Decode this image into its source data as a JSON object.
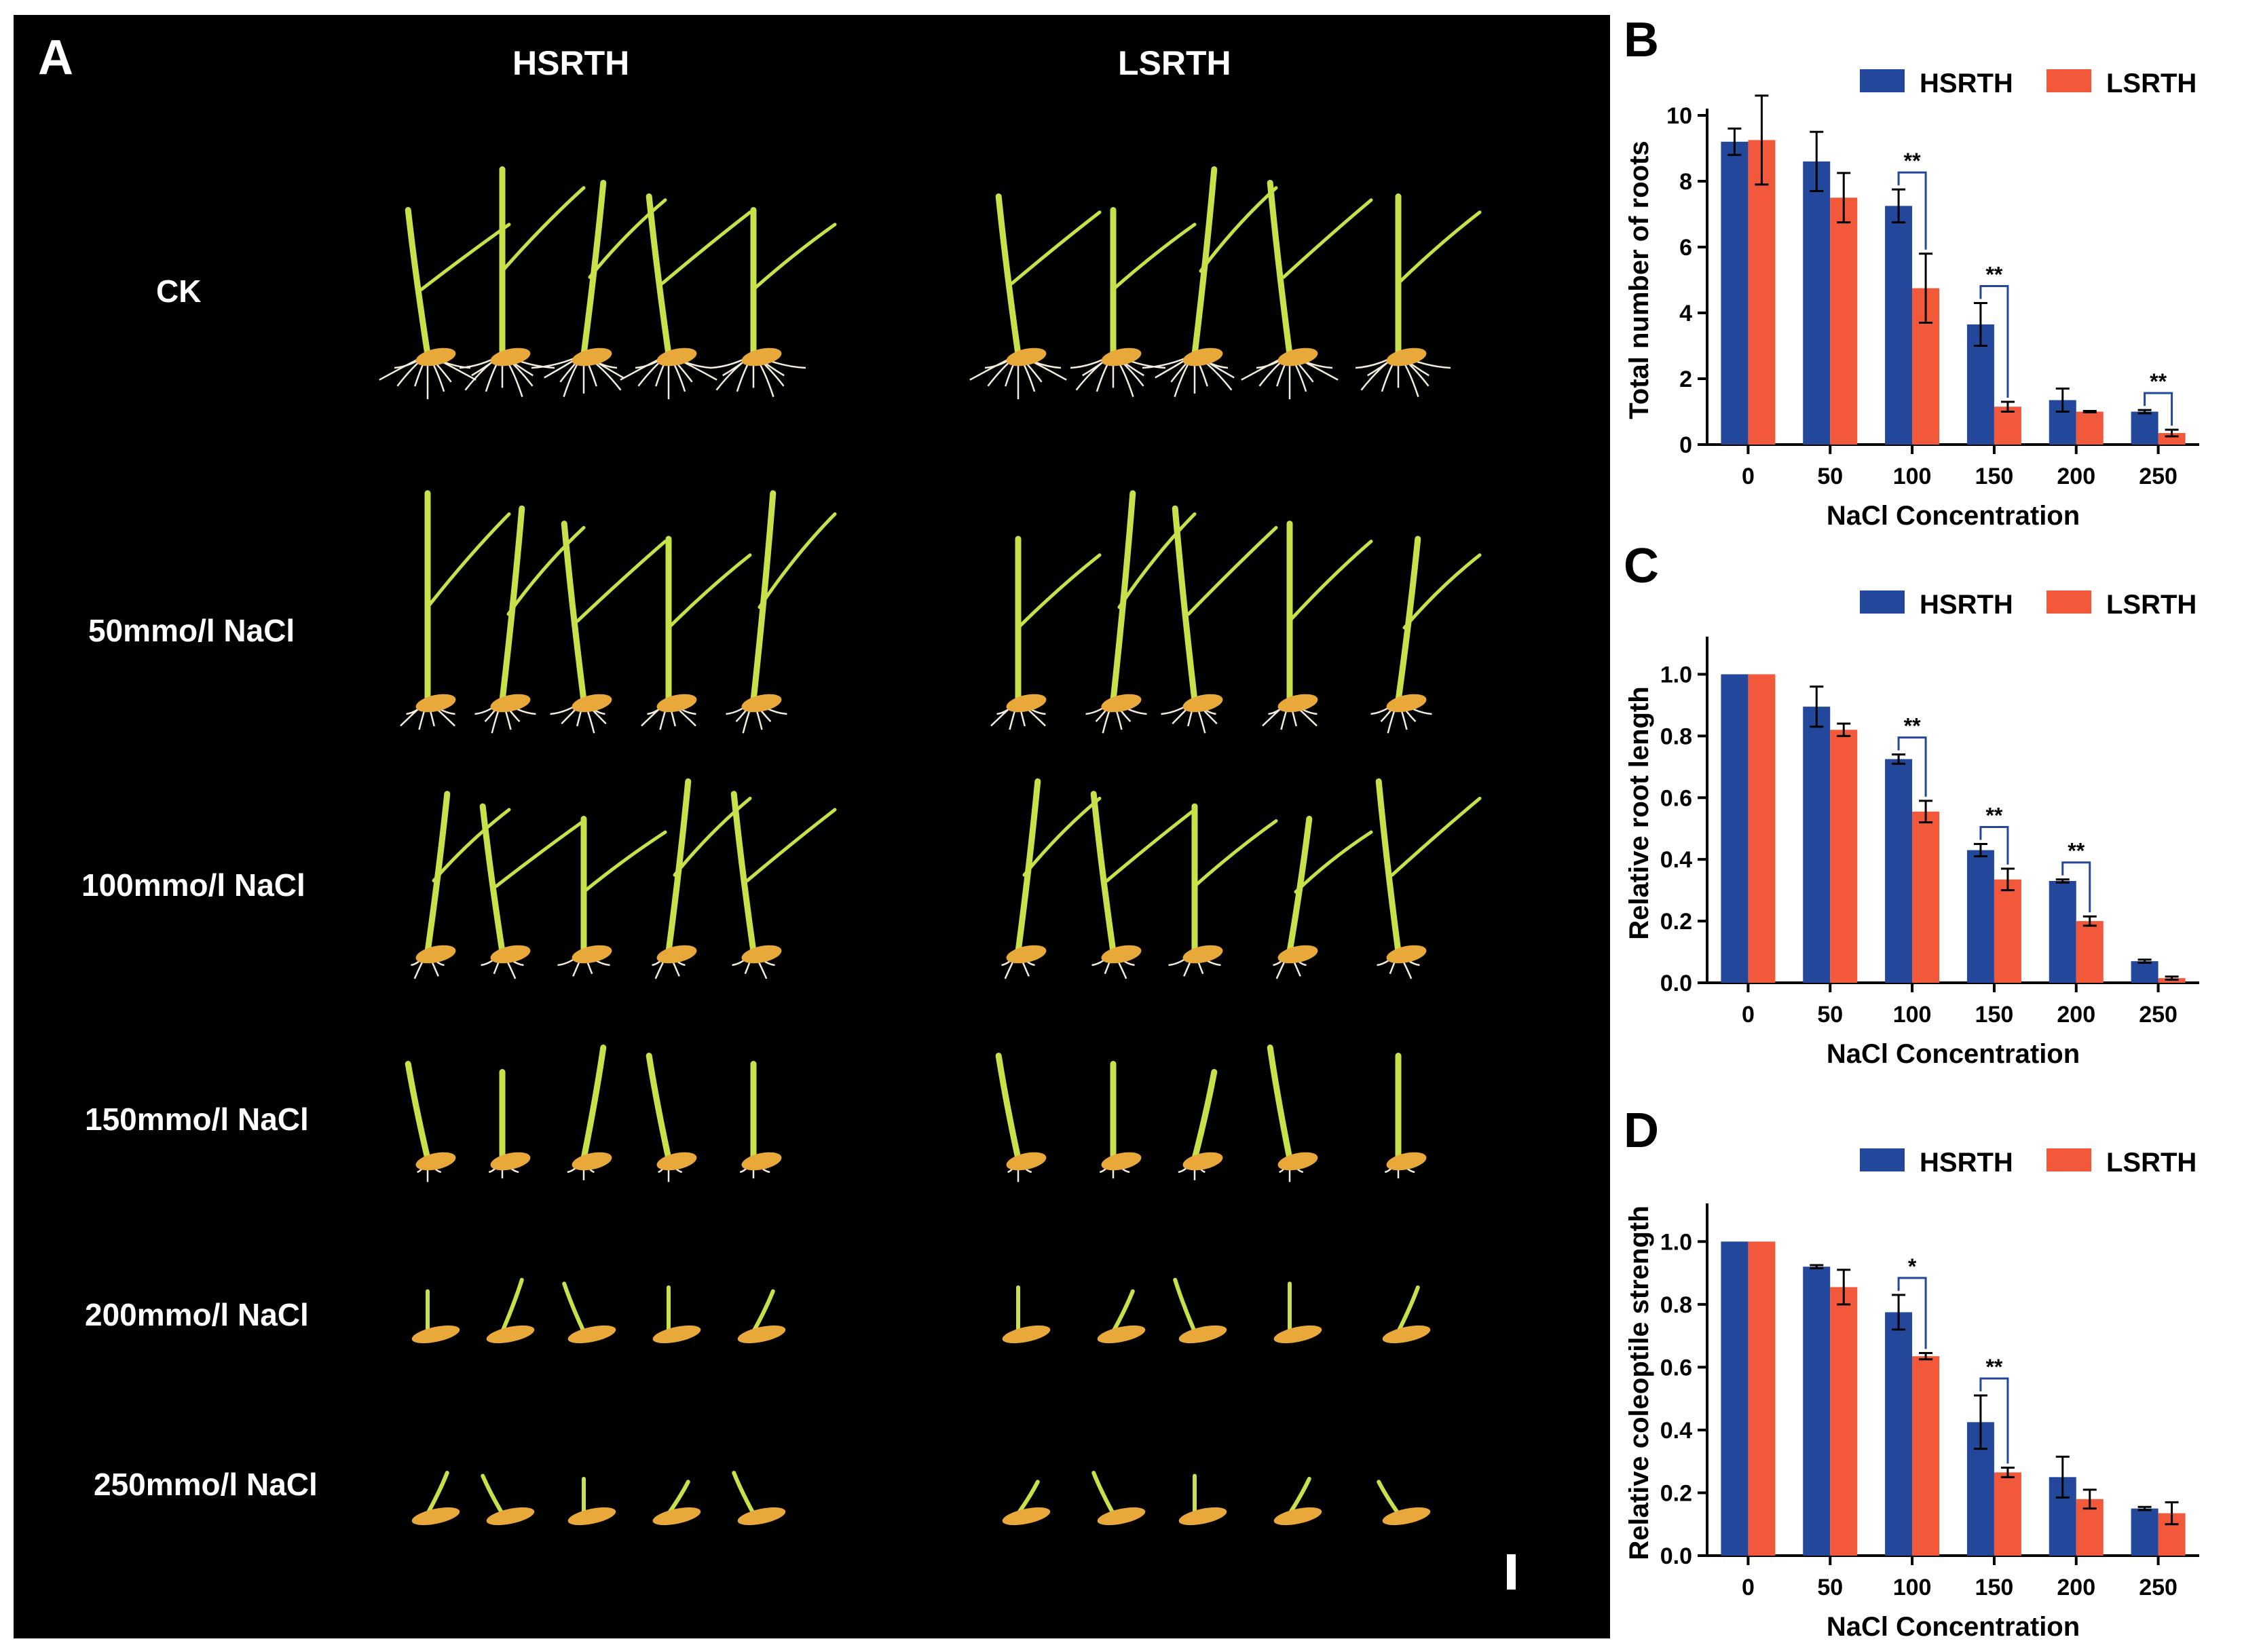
{
  "panel_a": {
    "letter": "A",
    "columns": [
      "HSRTH",
      "LSRTH"
    ],
    "rows": [
      "CK",
      "50mmo/l NaCl",
      "100mmo/l NaCl",
      "150mmo/l NaCl",
      "200mmo/l NaCl",
      "250mmo/l NaCl"
    ],
    "colors": {
      "background": "#000000",
      "leaf": "#c9e04a",
      "seed": "#e8a93a",
      "root": "#f2eddc"
    }
  },
  "colors": {
    "HSRTH": "#23479a",
    "LSRTH": "#f2583a",
    "axis": "#000000"
  },
  "chart_data": [
    {
      "panel": "B",
      "type": "bar",
      "legend": [
        "HSRTH",
        "LSRTH"
      ],
      "categories": [
        "0",
        "50",
        "100",
        "150",
        "200",
        "250"
      ],
      "series": [
        {
          "name": "HSRTH",
          "values": [
            9.2,
            8.6,
            7.25,
            3.65,
            1.35,
            1.0
          ],
          "errors": [
            0.4,
            0.9,
            0.5,
            0.65,
            0.35,
            0.05
          ]
        },
        {
          "name": "LSRTH",
          "values": [
            9.25,
            7.5,
            4.75,
            1.15,
            1.0,
            0.35
          ],
          "errors": [
            1.35,
            0.75,
            1.05,
            0.15,
            0.02,
            0.1
          ]
        }
      ],
      "xlabel": "NaCl Concentration",
      "ylabel": "Total number of roots",
      "ylim": [
        0,
        10
      ],
      "yticks": [
        "0",
        "2",
        "4",
        "6",
        "8",
        "10"
      ],
      "significance": [
        {
          "category": "100",
          "mark": "**"
        },
        {
          "category": "150",
          "mark": "**"
        },
        {
          "category": "250",
          "mark": "**"
        }
      ]
    },
    {
      "panel": "C",
      "type": "bar",
      "legend": [
        "HSRTH",
        "LSRTH"
      ],
      "categories": [
        "0",
        "50",
        "100",
        "150",
        "200",
        "250"
      ],
      "series": [
        {
          "name": "HSRTH",
          "values": [
            1.0,
            0.895,
            0.725,
            0.43,
            0.33,
            0.07
          ],
          "errors": [
            0,
            0.065,
            0.015,
            0.02,
            0.005,
            0.005
          ]
        },
        {
          "name": "LSRTH",
          "values": [
            1.0,
            0.82,
            0.555,
            0.335,
            0.2,
            0.015
          ],
          "errors": [
            0,
            0.02,
            0.035,
            0.035,
            0.015,
            0.005
          ]
        }
      ],
      "xlabel": "NaCl Concentration",
      "ylabel": "Relative root length",
      "ylim": [
        0,
        1.1
      ],
      "yticks": [
        "0.0",
        "0.2",
        "0.4",
        "0.6",
        "0.8",
        "1.0"
      ],
      "significance": [
        {
          "category": "100",
          "mark": "**"
        },
        {
          "category": "150",
          "mark": "**"
        },
        {
          "category": "200",
          "mark": "**"
        }
      ]
    },
    {
      "panel": "D",
      "type": "bar",
      "legend": [
        "HSRTH",
        "LSRTH"
      ],
      "categories": [
        "0",
        "50",
        "100",
        "150",
        "200",
        "250"
      ],
      "series": [
        {
          "name": "HSRTH",
          "values": [
            1.0,
            0.92,
            0.775,
            0.425,
            0.25,
            0.15
          ],
          "errors": [
            0,
            0.005,
            0.055,
            0.085,
            0.065,
            0.005
          ]
        },
        {
          "name": "LSRTH",
          "values": [
            1.0,
            0.855,
            0.635,
            0.265,
            0.18,
            0.135
          ],
          "errors": [
            0,
            0.055,
            0.01,
            0.015,
            0.03,
            0.035
          ]
        }
      ],
      "xlabel": "NaCl Concentration",
      "ylabel": "Relative coleoptile strength",
      "ylim": [
        0,
        1.1
      ],
      "yticks": [
        "0.0",
        "0.2",
        "0.4",
        "0.6",
        "0.8",
        "1.0"
      ],
      "significance": [
        {
          "category": "100",
          "mark": "*"
        },
        {
          "category": "150",
          "mark": "**"
        }
      ]
    }
  ]
}
